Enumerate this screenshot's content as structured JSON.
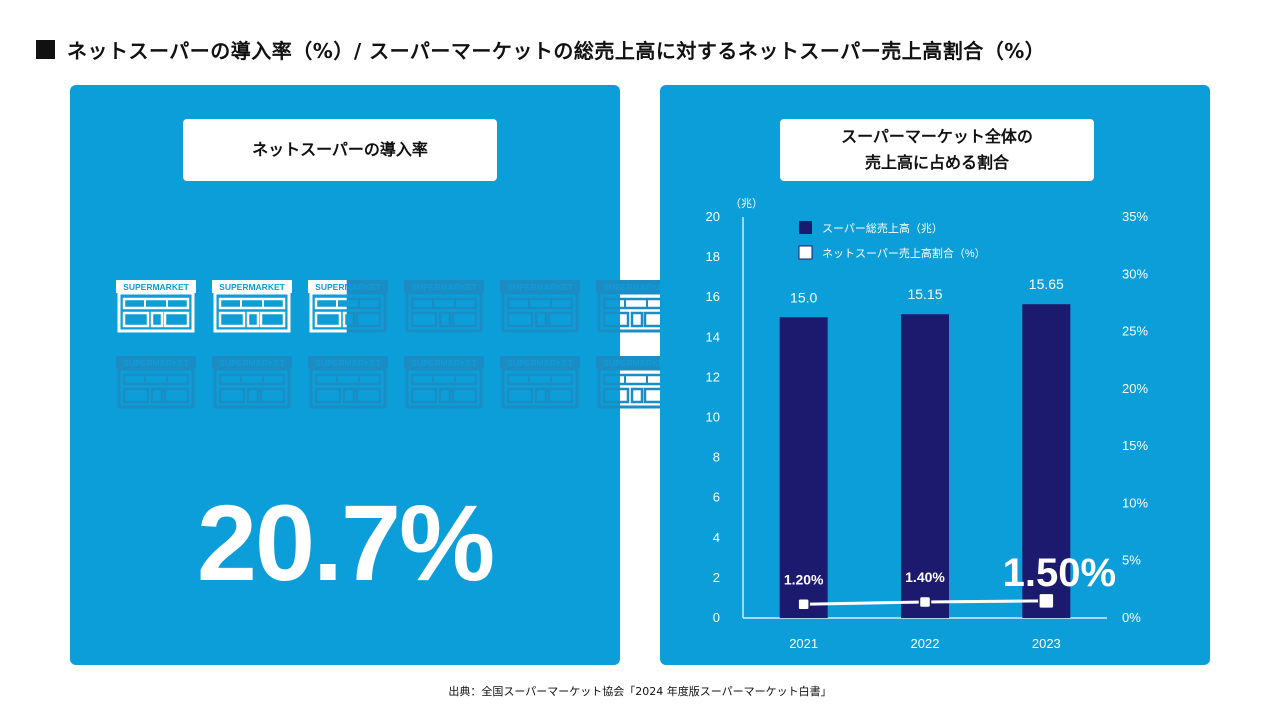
{
  "title": "ネットスーパーの導入率（%）/ スーパーマーケットの総売上高に対するネットスーパー売上高割合（%）",
  "left_panel": {
    "label": "ネットスーパーの導入率",
    "store_sign": "SUPERMARKET",
    "adoption_rate": 0.207,
    "big_value": "20.7%"
  },
  "right_panel": {
    "label_line1": "スーパーマーケット全体の",
    "label_line2": "売上高に占める割合"
  },
  "chart_data": {
    "type": "bar",
    "categories": [
      "2021",
      "2022",
      "2023"
    ],
    "series": [
      {
        "name": "スーパー総売上高（兆）",
        "kind": "bar",
        "axis": "left",
        "values": [
          15.0,
          15.15,
          15.65
        ],
        "labels": [
          "15.0",
          "15.15",
          "15.65"
        ],
        "color": "#1c1a6e"
      },
      {
        "name": "ネットスーパー売上高割合（%）",
        "kind": "line",
        "axis": "right",
        "values": [
          1.2,
          1.4,
          1.5
        ],
        "labels": [
          "1.20%",
          "1.40%",
          "1.50%"
        ],
        "color": "#ffffff"
      }
    ],
    "left_axis": {
      "unit": "（兆）",
      "ylim": [
        0,
        20
      ],
      "ticks": [
        "0",
        "2",
        "4",
        "6",
        "8",
        "10",
        "12",
        "14",
        "16",
        "18",
        "20"
      ]
    },
    "right_axis": {
      "ylim": [
        0,
        35
      ],
      "ticks": [
        "0%",
        "5%",
        "10%",
        "15%",
        "20%",
        "25%",
        "30%",
        "35%"
      ]
    },
    "legend_position": "top-left",
    "grid": false
  },
  "source": "出典：全国スーパーマーケット協会「2024 年度版スーパーマーケット白書」",
  "colors": {
    "panel": "#0b9ed8",
    "bar": "#1c1a6e",
    "line": "#ffffff",
    "text": "#111111"
  }
}
